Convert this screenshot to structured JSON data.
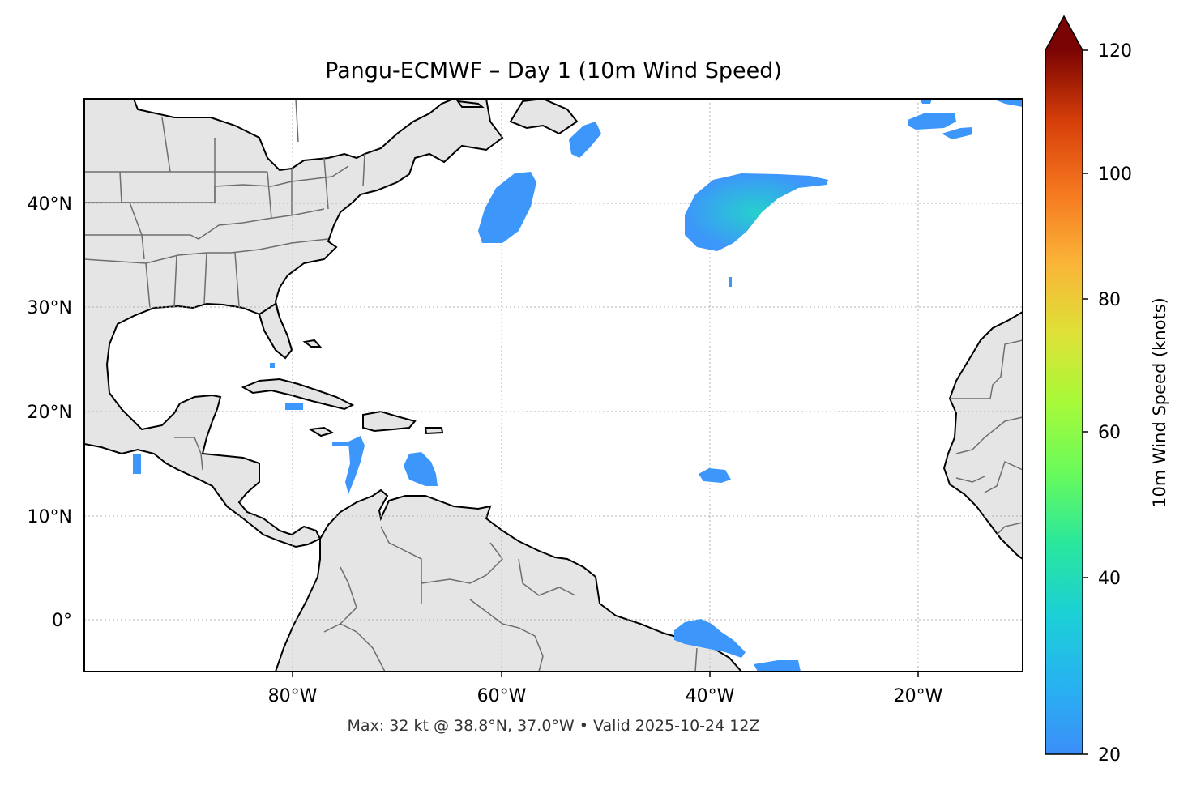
{
  "title": "Pangu-ECMWF – Day 1 (10m Wind Speed)",
  "footer": "Max: 32 kt @ 38.8°N, 37.0°W • Valid 2025-10-24 12Z",
  "map": {
    "lon_range": [
      -100,
      -10
    ],
    "lat_range": [
      -5,
      50
    ],
    "x_ticks": [
      {
        "value": -80,
        "label": "80°W"
      },
      {
        "value": -60,
        "label": "60°W"
      },
      {
        "value": -40,
        "label": "40°W"
      },
      {
        "value": -20,
        "label": "20°W"
      }
    ],
    "y_ticks": [
      {
        "value": 40,
        "label": "40°N"
      },
      {
        "value": 30,
        "label": "30°N"
      },
      {
        "value": 20,
        "label": "20°N"
      },
      {
        "value": 10,
        "label": "10°N"
      },
      {
        "value": 0,
        "label": "0°"
      }
    ],
    "gridlines": true,
    "land_color": "#e5e5e5",
    "coast_color": "#000000",
    "border_color": "#6e6e6e",
    "wind_patches_color": "#3d96fa",
    "wind_core_color": "#27c8d2"
  },
  "max_wind": {
    "value_kt": 32,
    "lat": 38.8,
    "lon": -37.0
  },
  "colorbar": {
    "label": "10m Wind Speed (knots)",
    "min": 20,
    "max": 120,
    "extend": "max",
    "ticks": [
      {
        "value": 20,
        "label": "20"
      },
      {
        "value": 40,
        "label": "40"
      },
      {
        "value": 60,
        "label": "60"
      },
      {
        "value": 80,
        "label": "80"
      },
      {
        "value": 100,
        "label": "100"
      },
      {
        "value": 120,
        "label": "120"
      }
    ],
    "colormap": "turbo"
  }
}
